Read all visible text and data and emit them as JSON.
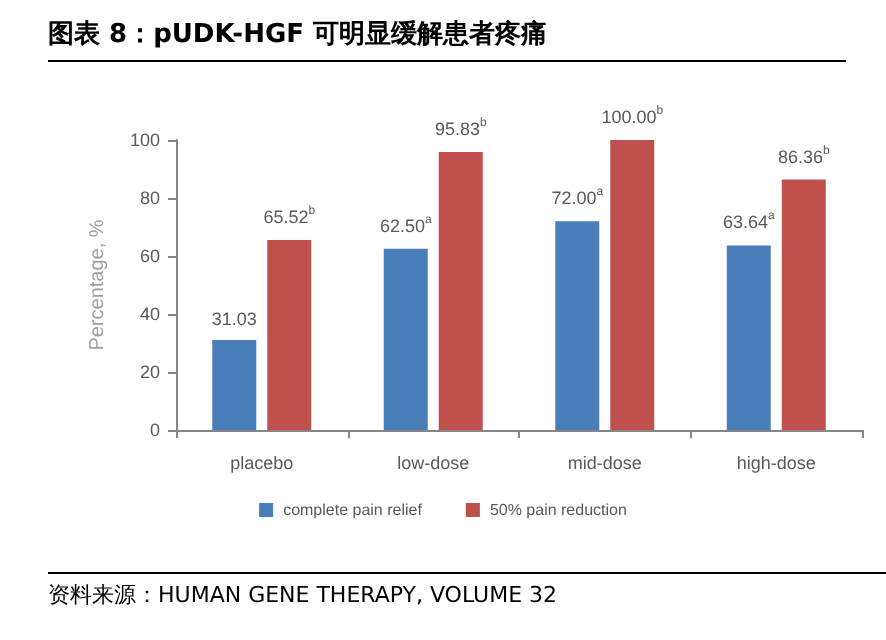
{
  "chart_data": {
    "type": "bar",
    "title": "图表 8：pUDK-HGF 可明显缓解患者疼痛",
    "ylabel": "Percentage, %",
    "categories": [
      "placebo",
      "low-dose",
      "mid-dose",
      "high-dose"
    ],
    "series": [
      {
        "name": "complete pain relief",
        "color": "#4a7ebb",
        "values": [
          31.03,
          62.5,
          72.0,
          63.64
        ],
        "value_labels": [
          "31.03",
          "62.50$^{a}$",
          "72.00$^{a}$",
          "63.64$^{a}$"
        ]
      },
      {
        "name": "50% pain reduction",
        "color": "#c0504d",
        "values": [
          65.52,
          95.83,
          100.0,
          86.36
        ],
        "value_labels": [
          "65.52$^{b}$",
          "95.83$^{b}$",
          "100.00$^{b}$",
          "86.36$^{b}$"
        ]
      }
    ],
    "ylim": [
      0,
      100
    ],
    "yticks": [
      0,
      20,
      40,
      60,
      80,
      100
    ],
    "grid": false,
    "legend": "bottom",
    "annotations": [
      "资料来源：HUMAN GENE THERAPY, VOLUME 32"
    ]
  }
}
